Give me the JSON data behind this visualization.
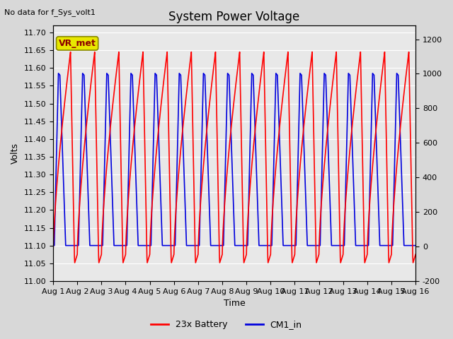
{
  "title": "System Power Voltage",
  "xlabel": "Time",
  "ylabel": "Volts",
  "no_data_text": "No data for f_Sys_volt1",
  "annotation_text": "VR_met",
  "legend_labels": [
    "23x Battery",
    "CM1_in"
  ],
  "ylim": [
    11.0,
    11.72
  ],
  "ylim2": [
    -200,
    1280
  ],
  "yticks": [
    11.0,
    11.05,
    11.1,
    11.15,
    11.2,
    11.25,
    11.3,
    11.35,
    11.4,
    11.45,
    11.5,
    11.55,
    11.6,
    11.65,
    11.7
  ],
  "yticks2": [
    -200,
    0,
    200,
    400,
    600,
    800,
    1000,
    1200
  ],
  "xtick_labels": [
    "Aug 1",
    "Aug 2",
    "Aug 3",
    "Aug 4",
    "Aug 5",
    "Aug 6",
    "Aug 7",
    "Aug 8",
    "Aug 9",
    "Aug 10",
    "Aug 11",
    "Aug 12",
    "Aug 13",
    "Aug 14",
    "Aug 15",
    "Aug 16"
  ],
  "bg_color": "#d8d8d8",
  "plot_bg_color": "#e8e8e8",
  "line_color_red": "#ff0000",
  "line_color_blue": "#0000dd",
  "linewidth": 1.2,
  "num_cycles": 15,
  "red_peak": 11.645,
  "red_trough": 11.075,
  "blue_peak": 11.585,
  "blue_trough": 11.1,
  "annotation_bg": "#e8e800",
  "title_fontsize": 12,
  "label_fontsize": 9,
  "tick_fontsize": 8
}
